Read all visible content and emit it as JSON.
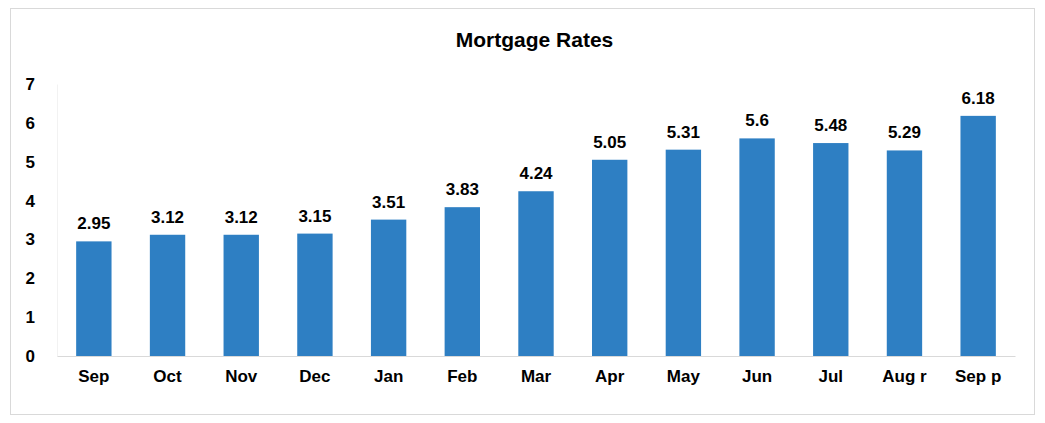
{
  "chart_data": {
    "type": "bar",
    "title": "Mortgage Rates",
    "categories": [
      "Sep",
      "Oct",
      "Nov",
      "Dec",
      "Jan",
      "Feb",
      "Mar",
      "Apr",
      "May",
      "Jun",
      "Jul",
      "Aug r",
      "Sep p"
    ],
    "values": [
      2.95,
      3.12,
      3.12,
      3.15,
      3.51,
      3.83,
      4.24,
      5.05,
      5.31,
      5.6,
      5.48,
      5.29,
      6.18
    ],
    "color": "#2e7fc3",
    "ylim": [
      0,
      7
    ],
    "yticks": [
      0,
      1,
      2,
      3,
      4,
      5,
      6,
      7
    ],
    "grid": false,
    "data_labels": true
  }
}
